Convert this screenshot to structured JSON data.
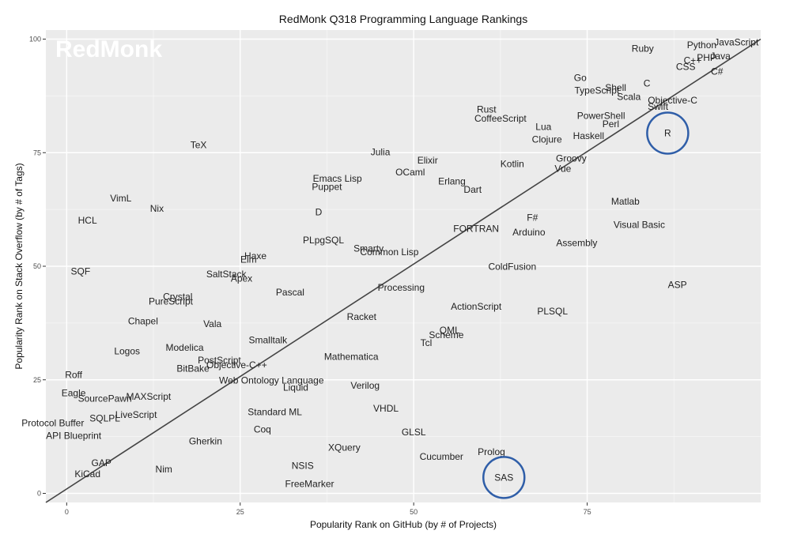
{
  "chart_data": {
    "type": "scatter",
    "title": "RedMonk Q318 Programming Language Rankings",
    "xlabel": "Popularity Rank on GitHub (by # of Projects)",
    "ylabel": "Popularity Rank on Stack Overflow (by # of Tags)",
    "xlim": [
      -3,
      100
    ],
    "ylim": [
      -2,
      102
    ],
    "xticks": [
      0,
      25,
      50,
      75
    ],
    "yticks": [
      0,
      25,
      50,
      75,
      100
    ],
    "grid": true,
    "watermark": "RedMonk",
    "trend_line": {
      "from": [
        -3,
        -2
      ],
      "to": [
        100,
        100
      ]
    },
    "highlighted": [
      "R",
      "SAS"
    ],
    "highlight_color": "#2f5ea8",
    "points": [
      {
        "label": "JavaScript",
        "x": 96.5,
        "y": 99.3
      },
      {
        "label": "Python",
        "x": 91.5,
        "y": 98.7
      },
      {
        "label": "Java",
        "x": 94.2,
        "y": 96.3
      },
      {
        "label": "PHP",
        "x": 92.2,
        "y": 95.9
      },
      {
        "label": "C++",
        "x": 90.2,
        "y": 95.3
      },
      {
        "label": "CSS",
        "x": 89.2,
        "y": 93.9
      },
      {
        "label": "C#",
        "x": 93.7,
        "y": 92.9
      },
      {
        "label": "Ruby",
        "x": 83.0,
        "y": 97.9
      },
      {
        "label": "Go",
        "x": 74.0,
        "y": 91.5
      },
      {
        "label": "Shell",
        "x": 79.1,
        "y": 89.3
      },
      {
        "label": "C",
        "x": 83.6,
        "y": 90.3
      },
      {
        "label": "TypeScript",
        "x": 76.4,
        "y": 88.7
      },
      {
        "label": "Scala",
        "x": 81.0,
        "y": 87.3
      },
      {
        "label": "Objective-C",
        "x": 87.3,
        "y": 86.5
      },
      {
        "label": "Swift",
        "x": 85.2,
        "y": 85.1
      },
      {
        "label": "R",
        "x": 86.6,
        "y": 79.3
      },
      {
        "label": "Rust",
        "x": 60.5,
        "y": 84.5
      },
      {
        "label": "CoffeeScript",
        "x": 62.5,
        "y": 82.5
      },
      {
        "label": "PowerShell",
        "x": 77.0,
        "y": 83.1
      },
      {
        "label": "Perl",
        "x": 78.4,
        "y": 81.3
      },
      {
        "label": "Lua",
        "x": 68.7,
        "y": 80.7
      },
      {
        "label": "Haskell",
        "x": 75.2,
        "y": 78.7
      },
      {
        "label": "Clojure",
        "x": 69.2,
        "y": 77.9
      },
      {
        "label": "TeX",
        "x": 19.0,
        "y": 76.7
      },
      {
        "label": "Julia",
        "x": 45.2,
        "y": 75.1
      },
      {
        "label": "Groovy",
        "x": 72.7,
        "y": 73.7
      },
      {
        "label": "Elixir",
        "x": 52.0,
        "y": 73.3
      },
      {
        "label": "Kotlin",
        "x": 64.2,
        "y": 72.5
      },
      {
        "label": "Vue",
        "x": 71.5,
        "y": 71.5
      },
      {
        "label": "OCaml",
        "x": 49.5,
        "y": 70.7
      },
      {
        "label": "Emacs Lisp",
        "x": 39.0,
        "y": 69.3
      },
      {
        "label": "Erlang",
        "x": 55.5,
        "y": 68.7
      },
      {
        "label": "Puppet",
        "x": 37.5,
        "y": 67.5
      },
      {
        "label": "Dart",
        "x": 58.5,
        "y": 66.9
      },
      {
        "label": "VimL",
        "x": 7.8,
        "y": 65.0
      },
      {
        "label": "Matlab",
        "x": 80.5,
        "y": 64.3
      },
      {
        "label": "Nix",
        "x": 13.0,
        "y": 62.7
      },
      {
        "label": "D",
        "x": 36.3,
        "y": 61.9
      },
      {
        "label": "F#",
        "x": 67.1,
        "y": 60.7
      },
      {
        "label": "HCL",
        "x": 3.0,
        "y": 60.1
      },
      {
        "label": "Visual Basic",
        "x": 82.5,
        "y": 59.1
      },
      {
        "label": "FORTRAN",
        "x": 59.0,
        "y": 58.3
      },
      {
        "label": "Arduino",
        "x": 66.6,
        "y": 57.5
      },
      {
        "label": "PLpgSQL",
        "x": 37.0,
        "y": 55.7
      },
      {
        "label": "Assembly",
        "x": 73.5,
        "y": 55.1
      },
      {
        "label": "Smarty",
        "x": 43.5,
        "y": 53.9
      },
      {
        "label": "Common Lisp",
        "x": 46.5,
        "y": 53.1
      },
      {
        "label": "Haxe",
        "x": 27.2,
        "y": 52.3
      },
      {
        "label": "Elm",
        "x": 26.2,
        "y": 51.5
      },
      {
        "label": "ColdFusion",
        "x": 64.2,
        "y": 49.9
      },
      {
        "label": "SQF",
        "x": 2.0,
        "y": 48.9
      },
      {
        "label": "SaltStack",
        "x": 23.0,
        "y": 48.3
      },
      {
        "label": "Apex",
        "x": 25.2,
        "y": 47.3
      },
      {
        "label": "ASP",
        "x": 88.0,
        "y": 45.9
      },
      {
        "label": "Processing",
        "x": 48.2,
        "y": 45.3
      },
      {
        "label": "Pascal",
        "x": 32.2,
        "y": 44.3
      },
      {
        "label": "Crystal",
        "x": 16.0,
        "y": 43.3
      },
      {
        "label": "PureScript",
        "x": 15.0,
        "y": 42.3
      },
      {
        "label": "ActionScript",
        "x": 59.0,
        "y": 41.1
      },
      {
        "label": "PLSQL",
        "x": 70.0,
        "y": 40.1
      },
      {
        "label": "Racket",
        "x": 42.5,
        "y": 38.9
      },
      {
        "label": "Chapel",
        "x": 11.0,
        "y": 37.9
      },
      {
        "label": "Vala",
        "x": 21.0,
        "y": 37.3
      },
      {
        "label": "QML",
        "x": 55.2,
        "y": 35.9
      },
      {
        "label": "Scheme",
        "x": 54.7,
        "y": 34.9
      },
      {
        "label": "Smalltalk",
        "x": 29.0,
        "y": 33.7
      },
      {
        "label": "Tcl",
        "x": 51.8,
        "y": 33.1
      },
      {
        "label": "Modelica",
        "x": 17.0,
        "y": 32.1
      },
      {
        "label": "Logos",
        "x": 8.7,
        "y": 31.3
      },
      {
        "label": "Mathematica",
        "x": 41.0,
        "y": 30.1
      },
      {
        "label": "PostScript",
        "x": 22.0,
        "y": 29.3
      },
      {
        "label": "Objective-C++",
        "x": 24.5,
        "y": 28.3
      },
      {
        "label": "BitBake",
        "x": 18.2,
        "y": 27.5
      },
      {
        "label": "Roff",
        "x": 1.0,
        "y": 26.1
      },
      {
        "label": "Web Ontology Language",
        "x": 29.5,
        "y": 24.9
      },
      {
        "label": "Verilog",
        "x": 43.0,
        "y": 23.7
      },
      {
        "label": "Liquid",
        "x": 33.0,
        "y": 23.3
      },
      {
        "label": "Eagle",
        "x": 1.0,
        "y": 22.1
      },
      {
        "label": "SourcePawn",
        "x": 5.5,
        "y": 20.9
      },
      {
        "label": "MAXScript",
        "x": 11.8,
        "y": 21.3
      },
      {
        "label": "VHDL",
        "x": 46.0,
        "y": 18.7
      },
      {
        "label": "Standard ML",
        "x": 30.0,
        "y": 17.9
      },
      {
        "label": "LiveScript",
        "x": 10.0,
        "y": 17.3
      },
      {
        "label": "SQLPL",
        "x": 5.5,
        "y": 16.5
      },
      {
        "label": "Protocol Buffer",
        "x": -2.0,
        "y": 15.5
      },
      {
        "label": "Coq",
        "x": 28.2,
        "y": 14.1
      },
      {
        "label": "GLSL",
        "x": 50.0,
        "y": 13.5
      },
      {
        "label": "API Blueprint",
        "x": 1.0,
        "y": 12.7
      },
      {
        "label": "Gherkin",
        "x": 20.0,
        "y": 11.5
      },
      {
        "label": "XQuery",
        "x": 40.0,
        "y": 10.1
      },
      {
        "label": "Prolog",
        "x": 61.2,
        "y": 9.1
      },
      {
        "label": "Cucumber",
        "x": 54.0,
        "y": 8.1
      },
      {
        "label": "GAP",
        "x": 5.0,
        "y": 6.7
      },
      {
        "label": "NSIS",
        "x": 34.0,
        "y": 6.1
      },
      {
        "label": "Nim",
        "x": 14.0,
        "y": 5.3
      },
      {
        "label": "KiCad",
        "x": 3.0,
        "y": 4.3
      },
      {
        "label": "SAS",
        "x": 63.0,
        "y": 3.5
      },
      {
        "label": "FreeMarker",
        "x": 35.0,
        "y": 2.1
      }
    ]
  }
}
